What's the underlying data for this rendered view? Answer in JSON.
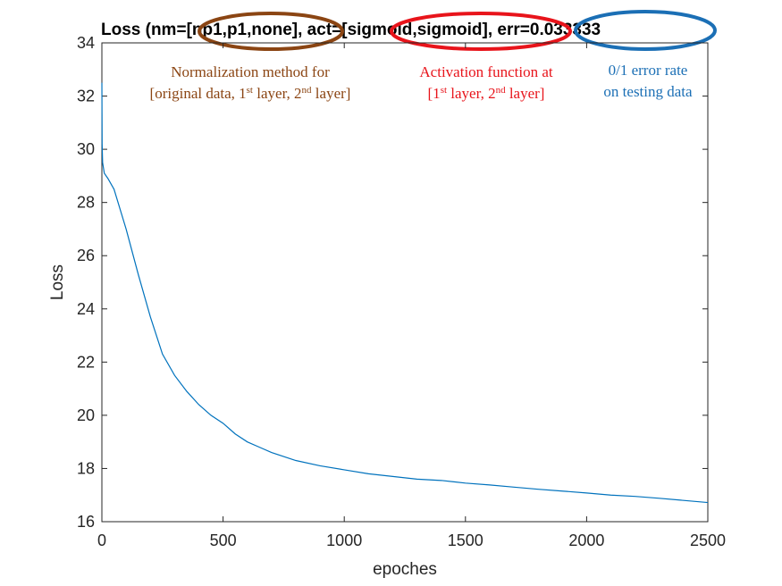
{
  "colors": {
    "line": "#0072BD",
    "axis": "#262626",
    "annotation_norm": "#8B4513",
    "annotation_act": "#E8141B",
    "annotation_err": "#1B6FB5"
  },
  "chart_data": {
    "type": "line",
    "title": "Loss (nm=[np1,p1,none], act=[sigmoid,sigmoid], err=0.033333",
    "title_parts": {
      "prefix": "Loss (nm=",
      "nm": "[np1,p1,none]",
      "mid": ", act=",
      "act": "[sigmoid,sigmoid]",
      "sep": ", ",
      "err": "err=0.033333"
    },
    "xlabel": "epoches",
    "ylabel": "Loss",
    "xlim": [
      0,
      2500
    ],
    "ylim": [
      16,
      34
    ],
    "xticks": [
      0,
      500,
      1000,
      1500,
      2000,
      2500
    ],
    "yticks": [
      16,
      18,
      20,
      22,
      24,
      26,
      28,
      30,
      32,
      34
    ],
    "grid": false,
    "series": [
      {
        "x": [
          0,
          1,
          3,
          10,
          25,
          50,
          100,
          150,
          200,
          250,
          300,
          350,
          400,
          450,
          500,
          550,
          600,
          650,
          700,
          750,
          800,
          900,
          1000,
          1100,
          1200,
          1300,
          1400,
          1500,
          1600,
          1700,
          1800,
          1900,
          2000,
          2100,
          2200,
          2300,
          2400,
          2500
        ],
        "y": [
          32.5,
          30.2,
          29.5,
          29.1,
          28.9,
          28.5,
          27.0,
          25.3,
          23.7,
          22.3,
          21.5,
          20.9,
          20.4,
          20.0,
          19.7,
          19.3,
          19.0,
          18.8,
          18.6,
          18.45,
          18.3,
          18.1,
          17.95,
          17.8,
          17.7,
          17.6,
          17.55,
          17.45,
          17.38,
          17.3,
          17.22,
          17.15,
          17.08,
          17.0,
          16.95,
          16.88,
          16.8,
          16.72
        ]
      }
    ],
    "annotations": [
      {
        "lines": [
          "Normalization method for",
          "[original data, 1st layer, 2nd layer]"
        ]
      },
      {
        "lines": [
          "Activation function at",
          "[1st layer, 2nd layer]"
        ]
      },
      {
        "lines": [
          "0/1 error rate",
          "on testing data"
        ]
      }
    ]
  }
}
